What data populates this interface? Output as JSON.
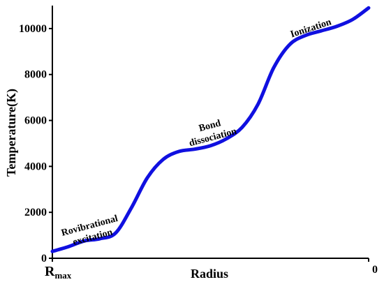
{
  "chart_data": {
    "type": "line",
    "title": "",
    "xlabel": "Radius",
    "ylabel": "Temperature(K)",
    "x_start_label": "R",
    "x_start_label_subscript": "max",
    "x_end_label": "0",
    "x_tick_values": [
      0,
      1
    ],
    "ylim": [
      0,
      11000
    ],
    "xlim": [
      0,
      1
    ],
    "y_ticks": [
      0,
      2000,
      4000,
      6000,
      8000,
      10000
    ],
    "y_tick_labels": [
      "0",
      "2000",
      "4000",
      "6000",
      "8000",
      "10000"
    ],
    "grid": false,
    "series": [
      {
        "color": "#1010e0",
        "x": [
          0.0,
          0.05,
          0.1,
          0.15,
          0.2,
          0.25,
          0.3,
          0.35,
          0.4,
          0.45,
          0.5,
          0.55,
          0.6,
          0.65,
          0.7,
          0.75,
          0.8,
          0.85,
          0.9,
          0.95,
          1.0
        ],
        "y": [
          300,
          500,
          750,
          850,
          1100,
          2200,
          3500,
          4300,
          4650,
          4750,
          4900,
          5200,
          5700,
          6700,
          8300,
          9300,
          9700,
          9900,
          10100,
          10400,
          10900
        ]
      }
    ],
    "annotations": [
      {
        "lines": [
          "Rovibrational",
          "excitation"
        ],
        "x": 0.12,
        "y": 1300
      },
      {
        "lines": [
          "Bond",
          "dissociation"
        ],
        "x": 0.5,
        "y": 5650
      },
      {
        "lines": [
          "Ionization"
        ],
        "x": 0.82,
        "y": 9900
      }
    ]
  }
}
